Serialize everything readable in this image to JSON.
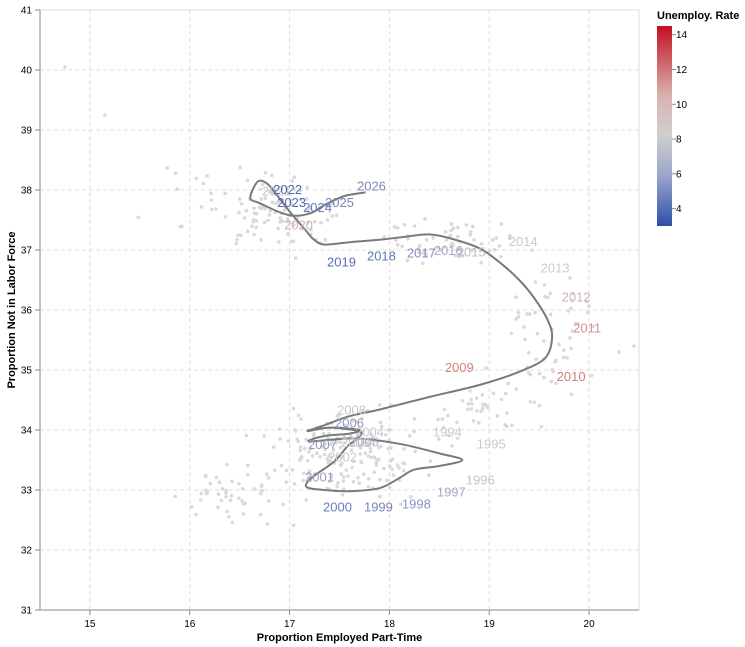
{
  "chart_data": {
    "type": "scatter",
    "title": "",
    "xlabel": "Proportion Employed Part-Time",
    "ylabel": "Proportion Not in Labor Force",
    "xlim": [
      14.5,
      20.5
    ],
    "ylim": [
      31,
      41
    ],
    "x_ticks": [
      "15",
      "16",
      "17",
      "18",
      "19",
      "20"
    ],
    "y_ticks": [
      "31",
      "32",
      "33",
      "34",
      "35",
      "36",
      "37",
      "38",
      "39",
      "40",
      "41"
    ],
    "grid": true,
    "legend": {
      "title": "Unemploy. Rate",
      "placement": "right",
      "ticks": [
        "4",
        "6",
        "8",
        "10",
        "12",
        "14"
      ],
      "domain": [
        3,
        14.5
      ]
    },
    "year_labels": [
      {
        "text": "1994",
        "x": 18.58,
        "y": 33.97,
        "rate": 6.1
      },
      {
        "text": "1995",
        "x": 19.02,
        "y": 33.77,
        "rate": 5.6
      },
      {
        "text": "1996",
        "x": 18.91,
        "y": 33.17,
        "rate": 5.4
      },
      {
        "text": "1997",
        "x": 18.62,
        "y": 32.97,
        "rate": 4.9
      },
      {
        "text": "1998",
        "x": 18.27,
        "y": 32.77,
        "rate": 4.5
      },
      {
        "text": "1999",
        "x": 17.89,
        "y": 32.72,
        "rate": 4.2
      },
      {
        "text": "2000",
        "x": 17.48,
        "y": 32.72,
        "rate": 4.0
      },
      {
        "text": "2001",
        "x": 17.3,
        "y": 33.22,
        "rate": 4.7
      },
      {
        "text": "2002",
        "x": 17.53,
        "y": 33.55,
        "rate": 5.8
      },
      {
        "text": "2003",
        "x": 17.66,
        "y": 33.79,
        "rate": 6.0
      },
      {
        "text": "2004",
        "x": 17.8,
        "y": 33.97,
        "rate": 5.5
      },
      {
        "text": "2005",
        "x": 17.75,
        "y": 33.8,
        "rate": 5.1
      },
      {
        "text": "2006",
        "x": 17.6,
        "y": 34.12,
        "rate": 4.6
      },
      {
        "text": "2007",
        "x": 17.33,
        "y": 33.76,
        "rate": 4.6
      },
      {
        "text": "2008",
        "x": 17.62,
        "y": 34.33,
        "rate": 5.8
      },
      {
        "text": "2009",
        "x": 18.7,
        "y": 35.04,
        "rate": 9.3
      },
      {
        "text": "2010",
        "x": 19.82,
        "y": 34.89,
        "rate": 9.6
      },
      {
        "text": "2011",
        "x": 19.98,
        "y": 35.7,
        "rate": 8.9
      },
      {
        "text": "2012",
        "x": 19.87,
        "y": 36.22,
        "rate": 8.1
      },
      {
        "text": "2013",
        "x": 19.66,
        "y": 36.7,
        "rate": 7.4
      },
      {
        "text": "2014",
        "x": 19.34,
        "y": 37.14,
        "rate": 6.2
      },
      {
        "text": "2015",
        "x": 18.82,
        "y": 36.97,
        "rate": 5.3
      },
      {
        "text": "2016",
        "x": 18.59,
        "y": 36.99,
        "rate": 4.9
      },
      {
        "text": "2017",
        "x": 18.32,
        "y": 36.95,
        "rate": 4.4
      },
      {
        "text": "2018",
        "x": 17.92,
        "y": 36.9,
        "rate": 3.9
      },
      {
        "text": "2019",
        "x": 17.52,
        "y": 36.8,
        "rate": 3.7
      },
      {
        "text": "2020",
        "x": 17.09,
        "y": 37.42,
        "rate": 8.1
      },
      {
        "text": "2021",
        "x": 16.87,
        "y": 37.98,
        "rate": 5.4
      },
      {
        "text": "2022",
        "x": 16.98,
        "y": 38.01,
        "rate": 3.6
      },
      {
        "text": "2023",
        "x": 17.02,
        "y": 37.79,
        "rate": 3.6
      },
      {
        "text": "2024",
        "x": 17.28,
        "y": 37.71,
        "rate": 4.0
      },
      {
        "text": "2025",
        "x": 17.5,
        "y": 37.79,
        "rate": 4.2
      },
      {
        "text": "2026",
        "x": 17.82,
        "y": 38.07,
        "rate": 4.3
      }
    ],
    "trajectory": [
      [
        17.76,
        37.96
      ],
      [
        17.55,
        37.9
      ],
      [
        17.35,
        37.75
      ],
      [
        17.22,
        37.62
      ],
      [
        17.05,
        37.57
      ],
      [
        16.9,
        37.63
      ],
      [
        16.7,
        37.78
      ],
      [
        16.61,
        37.85
      ],
      [
        16.63,
        38.0
      ],
      [
        16.69,
        38.15
      ],
      [
        16.78,
        38.1
      ],
      [
        16.88,
        37.9
      ],
      [
        17.02,
        37.6
      ],
      [
        17.15,
        37.35
      ],
      [
        17.24,
        37.18
      ],
      [
        17.35,
        37.09
      ],
      [
        17.6,
        37.13
      ],
      [
        17.9,
        37.17
      ],
      [
        18.2,
        37.23
      ],
      [
        18.4,
        37.26
      ],
      [
        18.62,
        37.19
      ],
      [
        18.9,
        37.03
      ],
      [
        19.1,
        36.8
      ],
      [
        19.3,
        36.5
      ],
      [
        19.45,
        36.2
      ],
      [
        19.58,
        35.85
      ],
      [
        19.63,
        35.55
      ],
      [
        19.56,
        35.2
      ],
      [
        19.3,
        34.97
      ],
      [
        18.9,
        34.75
      ],
      [
        18.4,
        34.55
      ],
      [
        17.9,
        34.34
      ],
      [
        17.6,
        34.23
      ],
      [
        17.35,
        34.08
      ],
      [
        17.18,
        33.98
      ],
      [
        17.4,
        34.04
      ],
      [
        17.7,
        34.0
      ],
      [
        17.6,
        33.94
      ],
      [
        17.35,
        33.9
      ],
      [
        17.2,
        33.81
      ],
      [
        17.65,
        33.86
      ],
      [
        18.1,
        33.77
      ],
      [
        18.5,
        33.61
      ],
      [
        18.73,
        33.5
      ],
      [
        18.5,
        33.4
      ],
      [
        18.25,
        33.34
      ],
      [
        18.1,
        33.2
      ],
      [
        17.9,
        33.03
      ],
      [
        17.6,
        32.98
      ],
      [
        17.35,
        33.0
      ],
      [
        17.17,
        33.05
      ],
      [
        17.22,
        33.2
      ],
      [
        17.45,
        33.48
      ],
      [
        17.58,
        33.73
      ],
      [
        17.72,
        33.95
      ],
      [
        17.5,
        34.03
      ],
      [
        17.33,
        34.03
      ],
      [
        17.17,
        33.99
      ]
    ],
    "background_points": {
      "count": 480,
      "clusters": [
        {
          "cx": 17.6,
          "cy": 33.6,
          "sx": 0.65,
          "sy": 0.55,
          "n": 170
        },
        {
          "cx": 16.9,
          "cy": 37.6,
          "sx": 0.45,
          "sy": 0.5,
          "n": 90
        },
        {
          "cx": 16.4,
          "cy": 32.9,
          "sx": 0.5,
          "sy": 0.4,
          "n": 50
        },
        {
          "cx": 18.6,
          "cy": 37.1,
          "sx": 0.55,
          "sy": 0.35,
          "n": 60
        },
        {
          "cx": 19.6,
          "cy": 35.6,
          "sx": 0.45,
          "sy": 0.8,
          "n": 55
        },
        {
          "cx": 18.9,
          "cy": 34.3,
          "sx": 0.45,
          "sy": 0.4,
          "n": 40
        },
        {
          "cx": 16.2,
          "cy": 37.9,
          "sx": 0.6,
          "sy": 0.5,
          "n": 15
        }
      ],
      "outliers": [
        [
          14.75,
          40.05
        ],
        [
          15.15,
          39.25
        ],
        [
          20.45,
          35.4
        ],
        [
          20.3,
          35.3
        ]
      ]
    }
  }
}
